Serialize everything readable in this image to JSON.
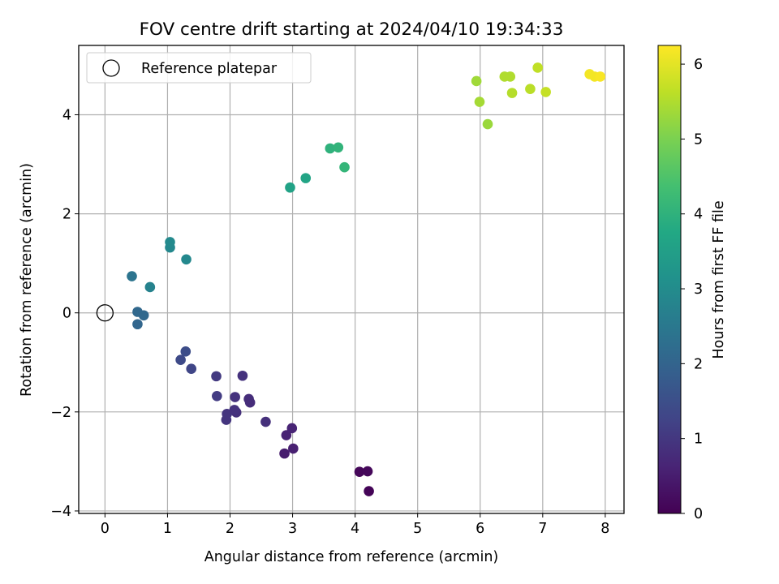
{
  "chart_data": {
    "type": "scatter",
    "title": "FOV centre drift starting at 2024/04/10 19:34:33",
    "xlabel": "Angular distance from reference (arcmin)",
    "ylabel": "Rotation from reference (arcmin)",
    "xlim": [
      -0.42,
      8.3
    ],
    "ylim": [
      -4.05,
      5.4
    ],
    "xticks": [
      0,
      1,
      2,
      3,
      4,
      5,
      6,
      7,
      8
    ],
    "yticks": [
      -4,
      -2,
      0,
      2,
      4
    ],
    "grid": true,
    "legend": {
      "placement": "top-left",
      "entries": [
        {
          "label": "Reference platepar",
          "marker": "open-circle"
        }
      ]
    },
    "reference_point": {
      "x": 0,
      "y": 0
    },
    "colorbar": {
      "label": "Hours from first FF file",
      "colormap": "viridis",
      "range": [
        0,
        6.25
      ],
      "ticks": [
        0,
        1,
        2,
        3,
        4,
        5,
        6
      ]
    },
    "points": [
      {
        "x": 4.22,
        "y": -3.6,
        "c": 0.05
      },
      {
        "x": 4.07,
        "y": -3.21,
        "c": 0.1
      },
      {
        "x": 4.2,
        "y": -3.2,
        "c": 0.12
      },
      {
        "x": 2.87,
        "y": -2.84,
        "c": 0.5
      },
      {
        "x": 3.01,
        "y": -2.74,
        "c": 0.55
      },
      {
        "x": 2.9,
        "y": -2.47,
        "c": 0.6
      },
      {
        "x": 2.99,
        "y": -2.33,
        "c": 0.62
      },
      {
        "x": 2.57,
        "y": -2.2,
        "c": 0.85
      },
      {
        "x": 2.1,
        "y": -2.01,
        "c": 0.85
      },
      {
        "x": 1.94,
        "y": -2.16,
        "c": 0.95
      },
      {
        "x": 1.95,
        "y": -2.04,
        "c": 0.95
      },
      {
        "x": 2.07,
        "y": -1.96,
        "c": 0.9
      },
      {
        "x": 2.32,
        "y": -1.81,
        "c": 0.8
      },
      {
        "x": 2.3,
        "y": -1.74,
        "c": 0.8
      },
      {
        "x": 2.08,
        "y": -1.7,
        "c": 0.9
      },
      {
        "x": 1.79,
        "y": -1.68,
        "c": 1.1
      },
      {
        "x": 1.78,
        "y": -1.28,
        "c": 1.05
      },
      {
        "x": 2.2,
        "y": -1.27,
        "c": 0.9
      },
      {
        "x": 1.38,
        "y": -1.13,
        "c": 1.3
      },
      {
        "x": 1.21,
        "y": -0.95,
        "c": 1.4
      },
      {
        "x": 1.29,
        "y": -0.78,
        "c": 1.45
      },
      {
        "x": 0.52,
        "y": -0.23,
        "c": 2.05
      },
      {
        "x": 0.62,
        "y": -0.05,
        "c": 2.1
      },
      {
        "x": 0.52,
        "y": 0.02,
        "c": 2.1
      },
      {
        "x": 0.43,
        "y": 0.74,
        "c": 2.4
      },
      {
        "x": 0.72,
        "y": 0.52,
        "c": 2.75
      },
      {
        "x": 1.3,
        "y": 1.08,
        "c": 2.9
      },
      {
        "x": 1.04,
        "y": 1.32,
        "c": 2.9
      },
      {
        "x": 1.04,
        "y": 1.43,
        "c": 2.95
      },
      {
        "x": 2.96,
        "y": 2.53,
        "c": 3.6
      },
      {
        "x": 3.21,
        "y": 2.72,
        "c": 3.65
      },
      {
        "x": 3.6,
        "y": 3.32,
        "c": 4.0
      },
      {
        "x": 3.73,
        "y": 3.34,
        "c": 4.05
      },
      {
        "x": 3.83,
        "y": 2.94,
        "c": 4.1
      },
      {
        "x": 5.94,
        "y": 4.68,
        "c": 5.35
      },
      {
        "x": 5.99,
        "y": 4.26,
        "c": 5.4
      },
      {
        "x": 6.12,
        "y": 3.81,
        "c": 5.3
      },
      {
        "x": 6.39,
        "y": 4.77,
        "c": 5.5
      },
      {
        "x": 6.48,
        "y": 4.77,
        "c": 5.5
      },
      {
        "x": 6.51,
        "y": 4.44,
        "c": 5.55
      },
      {
        "x": 6.8,
        "y": 4.52,
        "c": 5.6
      },
      {
        "x": 6.92,
        "y": 4.95,
        "c": 5.65
      },
      {
        "x": 7.05,
        "y": 4.46,
        "c": 5.7
      },
      {
        "x": 7.75,
        "y": 4.82,
        "c": 6.15
      },
      {
        "x": 7.83,
        "y": 4.77,
        "c": 6.15
      },
      {
        "x": 7.92,
        "y": 4.77,
        "c": 6.2
      }
    ]
  }
}
